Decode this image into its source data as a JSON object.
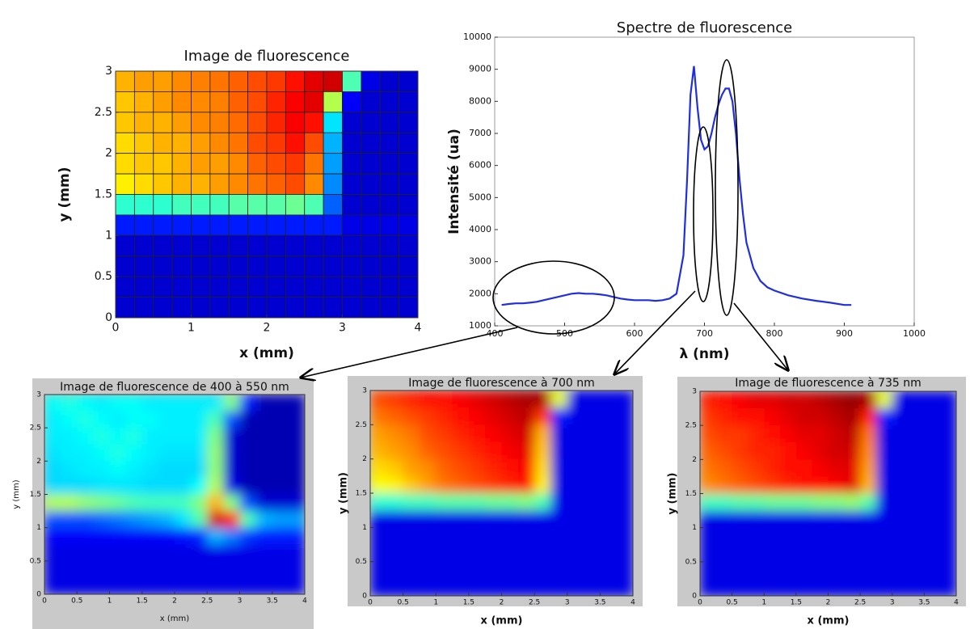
{
  "chart_data": [
    {
      "type": "heatmap",
      "title": "Image de fluorescence",
      "xlabel": "x (mm)",
      "ylabel": "y (mm)",
      "xlim": [
        0,
        4
      ],
      "ylim": [
        0,
        3
      ],
      "xticks": [
        0,
        1,
        2,
        3,
        4
      ],
      "yticks": [
        0,
        0.5,
        1,
        1.5,
        2,
        2.5,
        3
      ],
      "colormap": "jet",
      "clim": [
        0,
        1
      ],
      "cell_edges": true,
      "smooth": false,
      "z": [
        [
          0.7,
          0.72,
          0.72,
          0.74,
          0.75,
          0.76,
          0.78,
          0.8,
          0.82,
          0.86,
          0.9,
          0.92,
          0.45,
          0.1,
          0.08,
          0.08
        ],
        [
          0.68,
          0.7,
          0.72,
          0.74,
          0.74,
          0.75,
          0.78,
          0.8,
          0.84,
          0.88,
          0.9,
          0.55,
          0.12,
          0.08,
          0.08,
          0.08
        ],
        [
          0.68,
          0.7,
          0.7,
          0.72,
          0.74,
          0.75,
          0.77,
          0.8,
          0.84,
          0.88,
          0.86,
          0.35,
          0.08,
          0.08,
          0.08,
          0.08
        ],
        [
          0.66,
          0.68,
          0.7,
          0.7,
          0.72,
          0.74,
          0.76,
          0.8,
          0.82,
          0.86,
          0.8,
          0.3,
          0.08,
          0.08,
          0.08,
          0.08
        ],
        [
          0.66,
          0.68,
          0.68,
          0.7,
          0.72,
          0.72,
          0.74,
          0.78,
          0.8,
          0.82,
          0.76,
          0.28,
          0.08,
          0.08,
          0.08,
          0.08
        ],
        [
          0.64,
          0.66,
          0.68,
          0.7,
          0.7,
          0.72,
          0.74,
          0.76,
          0.78,
          0.8,
          0.74,
          0.26,
          0.08,
          0.08,
          0.08,
          0.08
        ],
        [
          0.42,
          0.42,
          0.42,
          0.44,
          0.44,
          0.44,
          0.46,
          0.46,
          0.46,
          0.48,
          0.45,
          0.22,
          0.08,
          0.08,
          0.08,
          0.08
        ],
        [
          0.15,
          0.15,
          0.15,
          0.15,
          0.15,
          0.15,
          0.15,
          0.15,
          0.15,
          0.15,
          0.15,
          0.15,
          0.1,
          0.1,
          0.1,
          0.1
        ],
        [
          0.08,
          0.08,
          0.08,
          0.08,
          0.08,
          0.08,
          0.08,
          0.08,
          0.08,
          0.08,
          0.08,
          0.08,
          0.08,
          0.08,
          0.08,
          0.08
        ],
        [
          0.08,
          0.08,
          0.08,
          0.08,
          0.08,
          0.08,
          0.08,
          0.08,
          0.08,
          0.08,
          0.08,
          0.08,
          0.08,
          0.08,
          0.08,
          0.08
        ],
        [
          0.08,
          0.08,
          0.08,
          0.08,
          0.08,
          0.08,
          0.08,
          0.08,
          0.08,
          0.08,
          0.08,
          0.08,
          0.08,
          0.08,
          0.08,
          0.08
        ],
        [
          0.08,
          0.08,
          0.08,
          0.08,
          0.08,
          0.08,
          0.08,
          0.08,
          0.08,
          0.08,
          0.08,
          0.08,
          0.08,
          0.08,
          0.08,
          0.08
        ]
      ]
    },
    {
      "type": "line",
      "title": "Spectre de fluorescence",
      "xlabel": "λ (nm)",
      "ylabel": "Intensité (ua)",
      "xlim": [
        400,
        1000
      ],
      "ylim": [
        1000,
        10000
      ],
      "xticks": [
        400,
        500,
        600,
        700,
        800,
        900,
        1000
      ],
      "yticks": [
        1000,
        2000,
        3000,
        4000,
        5000,
        6000,
        7000,
        8000,
        9000,
        10000
      ],
      "x": [
        410,
        420,
        430,
        440,
        450,
        460,
        470,
        480,
        490,
        500,
        510,
        520,
        530,
        540,
        550,
        560,
        570,
        580,
        590,
        600,
        610,
        620,
        630,
        640,
        650,
        660,
        670,
        675,
        680,
        685,
        690,
        695,
        700,
        705,
        710,
        715,
        720,
        725,
        730,
        735,
        740,
        745,
        750,
        755,
        760,
        770,
        780,
        790,
        800,
        820,
        840,
        860,
        880,
        900,
        910
      ],
      "series": [
        {
          "color": "#1f2fe0",
          "values": [
            1650,
            1680,
            1700,
            1700,
            1720,
            1750,
            1800,
            1850,
            1900,
            1950,
            2000,
            2020,
            2000,
            2000,
            1980,
            1950,
            1900,
            1850,
            1820,
            1800,
            1800,
            1800,
            1780,
            1800,
            1850,
            2000,
            3200,
            5500,
            8200,
            9100,
            7800,
            6800,
            6500,
            6600,
            7000,
            7500,
            7900,
            8200,
            8400,
            8400,
            8000,
            7000,
            5600,
            4500,
            3600,
            2800,
            2400,
            2200,
            2100,
            1950,
            1850,
            1780,
            1720,
            1650,
            1650
          ]
        }
      ]
    },
    {
      "type": "heatmap",
      "title": "Image de fluorescence de 400 à 550 nm",
      "xlabel": "x (mm)",
      "ylabel": "y (mm)",
      "xlim": [
        0,
        4
      ],
      "ylim": [
        0,
        3
      ],
      "xticks": [
        0,
        0.5,
        1,
        1.5,
        2,
        2.5,
        3,
        3.5,
        4
      ],
      "yticks": [
        0,
        0.5,
        1,
        1.5,
        2,
        2.5,
        3
      ],
      "colormap": "jet",
      "clim": [
        0,
        1
      ],
      "cell_edges": false,
      "smooth": true,
      "z": [
        [
          0.38,
          0.4,
          0.38,
          0.36,
          0.38,
          0.38,
          0.36,
          0.36,
          0.36,
          0.36,
          0.36,
          0.5,
          0.15,
          0.05,
          0.05,
          0.05
        ],
        [
          0.36,
          0.38,
          0.4,
          0.38,
          0.36,
          0.38,
          0.38,
          0.36,
          0.36,
          0.36,
          0.45,
          0.2,
          0.05,
          0.05,
          0.05,
          0.05
        ],
        [
          0.36,
          0.36,
          0.38,
          0.4,
          0.38,
          0.4,
          0.36,
          0.36,
          0.36,
          0.36,
          0.5,
          0.08,
          0.05,
          0.05,
          0.05,
          0.05
        ],
        [
          0.35,
          0.36,
          0.36,
          0.38,
          0.4,
          0.38,
          0.36,
          0.35,
          0.35,
          0.35,
          0.52,
          0.08,
          0.05,
          0.05,
          0.05,
          0.05
        ],
        [
          0.34,
          0.35,
          0.36,
          0.36,
          0.38,
          0.36,
          0.35,
          0.34,
          0.34,
          0.34,
          0.52,
          0.08,
          0.05,
          0.05,
          0.05,
          0.05
        ],
        [
          0.34,
          0.34,
          0.34,
          0.35,
          0.35,
          0.35,
          0.34,
          0.34,
          0.34,
          0.38,
          0.55,
          0.1,
          0.05,
          0.05,
          0.05,
          0.05
        ],
        [
          0.55,
          0.55,
          0.52,
          0.5,
          0.48,
          0.45,
          0.44,
          0.44,
          0.44,
          0.5,
          0.7,
          0.5,
          0.2,
          0.08,
          0.08,
          0.08
        ],
        [
          0.2,
          0.2,
          0.2,
          0.22,
          0.24,
          0.26,
          0.28,
          0.3,
          0.35,
          0.45,
          0.92,
          0.85,
          0.45,
          0.3,
          0.28,
          0.28
        ],
        [
          0.12,
          0.12,
          0.12,
          0.12,
          0.12,
          0.12,
          0.12,
          0.12,
          0.14,
          0.16,
          0.3,
          0.25,
          0.18,
          0.15,
          0.15,
          0.15
        ],
        [
          0.1,
          0.1,
          0.1,
          0.1,
          0.1,
          0.1,
          0.1,
          0.1,
          0.1,
          0.1,
          0.1,
          0.1,
          0.1,
          0.1,
          0.1,
          0.1
        ],
        [
          0.1,
          0.1,
          0.1,
          0.1,
          0.1,
          0.1,
          0.1,
          0.1,
          0.1,
          0.1,
          0.1,
          0.1,
          0.1,
          0.1,
          0.1,
          0.1
        ],
        [
          0.1,
          0.1,
          0.1,
          0.1,
          0.1,
          0.1,
          0.1,
          0.1,
          0.1,
          0.1,
          0.1,
          0.1,
          0.1,
          0.1,
          0.1,
          0.1
        ]
      ]
    },
    {
      "type": "heatmap",
      "title": "Image de fluorescence à 700 nm",
      "xlabel": "x (mm)",
      "ylabel": "y (mm)",
      "xlim": [
        0,
        4
      ],
      "ylim": [
        0,
        3
      ],
      "xticks": [
        0,
        0.5,
        1,
        1.5,
        2,
        2.5,
        3,
        3.5,
        4
      ],
      "yticks": [
        0,
        0.5,
        1,
        1.5,
        2,
        2.5,
        3
      ],
      "colormap": "jet",
      "clim": [
        0,
        1
      ],
      "cell_edges": false,
      "smooth": true,
      "z": [
        [
          0.8,
          0.82,
          0.84,
          0.86,
          0.86,
          0.88,
          0.9,
          0.92,
          0.94,
          0.96,
          0.96,
          0.6,
          0.1,
          0.1,
          0.1,
          0.1
        ],
        [
          0.76,
          0.78,
          0.8,
          0.82,
          0.84,
          0.86,
          0.88,
          0.9,
          0.92,
          0.94,
          0.82,
          0.15,
          0.1,
          0.1,
          0.1,
          0.1
        ],
        [
          0.72,
          0.74,
          0.76,
          0.8,
          0.82,
          0.84,
          0.86,
          0.88,
          0.9,
          0.92,
          0.7,
          0.1,
          0.1,
          0.1,
          0.1,
          0.1
        ],
        [
          0.7,
          0.72,
          0.74,
          0.78,
          0.8,
          0.82,
          0.84,
          0.86,
          0.88,
          0.9,
          0.68,
          0.1,
          0.1,
          0.1,
          0.1,
          0.1
        ],
        [
          0.66,
          0.68,
          0.72,
          0.74,
          0.78,
          0.8,
          0.82,
          0.84,
          0.86,
          0.88,
          0.66,
          0.1,
          0.1,
          0.1,
          0.1,
          0.1
        ],
        [
          0.62,
          0.64,
          0.68,
          0.72,
          0.76,
          0.78,
          0.8,
          0.82,
          0.84,
          0.86,
          0.64,
          0.1,
          0.1,
          0.1,
          0.1,
          0.1
        ],
        [
          0.42,
          0.42,
          0.44,
          0.44,
          0.46,
          0.46,
          0.46,
          0.48,
          0.48,
          0.5,
          0.45,
          0.1,
          0.1,
          0.1,
          0.1,
          0.1
        ],
        [
          0.1,
          0.1,
          0.1,
          0.1,
          0.1,
          0.1,
          0.1,
          0.1,
          0.1,
          0.1,
          0.1,
          0.1,
          0.1,
          0.1,
          0.1,
          0.1
        ],
        [
          0.1,
          0.1,
          0.1,
          0.1,
          0.1,
          0.1,
          0.1,
          0.1,
          0.1,
          0.1,
          0.1,
          0.1,
          0.1,
          0.1,
          0.1,
          0.1
        ],
        [
          0.1,
          0.1,
          0.1,
          0.1,
          0.1,
          0.1,
          0.1,
          0.1,
          0.1,
          0.1,
          0.1,
          0.1,
          0.1,
          0.1,
          0.1,
          0.1
        ],
        [
          0.1,
          0.1,
          0.1,
          0.1,
          0.1,
          0.1,
          0.1,
          0.1,
          0.1,
          0.1,
          0.1,
          0.1,
          0.1,
          0.1,
          0.1,
          0.1
        ],
        [
          0.1,
          0.1,
          0.1,
          0.1,
          0.1,
          0.1,
          0.1,
          0.1,
          0.1,
          0.1,
          0.1,
          0.1,
          0.1,
          0.1,
          0.1,
          0.1
        ]
      ]
    },
    {
      "type": "heatmap",
      "title": "Image de fluorescence à 735 nm",
      "xlabel": "x (mm)",
      "ylabel": "y (mm)",
      "xlim": [
        0,
        4
      ],
      "ylim": [
        0,
        3
      ],
      "xticks": [
        0,
        0.5,
        1,
        1.5,
        2,
        2.5,
        3,
        3.5,
        4
      ],
      "yticks": [
        0,
        0.5,
        1,
        1.5,
        2,
        2.5,
        3
      ],
      "colormap": "jet",
      "clim": [
        0,
        1
      ],
      "cell_edges": false,
      "smooth": true,
      "z": [
        [
          0.85,
          0.86,
          0.88,
          0.9,
          0.9,
          0.92,
          0.92,
          0.94,
          0.96,
          0.98,
          0.96,
          0.6,
          0.1,
          0.1,
          0.1,
          0.1
        ],
        [
          0.82,
          0.84,
          0.86,
          0.86,
          0.88,
          0.9,
          0.92,
          0.92,
          0.94,
          0.96,
          0.84,
          0.15,
          0.1,
          0.1,
          0.1,
          0.1
        ],
        [
          0.8,
          0.82,
          0.82,
          0.84,
          0.86,
          0.88,
          0.9,
          0.9,
          0.92,
          0.94,
          0.76,
          0.1,
          0.1,
          0.1,
          0.1,
          0.1
        ],
        [
          0.78,
          0.8,
          0.82,
          0.84,
          0.84,
          0.86,
          0.88,
          0.9,
          0.92,
          0.92,
          0.74,
          0.1,
          0.1,
          0.1,
          0.1,
          0.1
        ],
        [
          0.76,
          0.78,
          0.8,
          0.82,
          0.84,
          0.86,
          0.86,
          0.88,
          0.9,
          0.9,
          0.72,
          0.1,
          0.1,
          0.1,
          0.1,
          0.1
        ],
        [
          0.74,
          0.76,
          0.78,
          0.8,
          0.82,
          0.84,
          0.86,
          0.86,
          0.88,
          0.9,
          0.7,
          0.1,
          0.1,
          0.1,
          0.1,
          0.1
        ],
        [
          0.44,
          0.44,
          0.46,
          0.46,
          0.48,
          0.48,
          0.48,
          0.5,
          0.5,
          0.52,
          0.46,
          0.1,
          0.1,
          0.1,
          0.1,
          0.1
        ],
        [
          0.1,
          0.1,
          0.1,
          0.1,
          0.1,
          0.1,
          0.1,
          0.1,
          0.1,
          0.1,
          0.1,
          0.1,
          0.1,
          0.1,
          0.1,
          0.1
        ],
        [
          0.1,
          0.1,
          0.1,
          0.1,
          0.1,
          0.1,
          0.1,
          0.1,
          0.1,
          0.1,
          0.1,
          0.1,
          0.1,
          0.1,
          0.1,
          0.1
        ],
        [
          0.1,
          0.1,
          0.1,
          0.1,
          0.1,
          0.1,
          0.1,
          0.1,
          0.1,
          0.1,
          0.1,
          0.1,
          0.1,
          0.1,
          0.1,
          0.1
        ],
        [
          0.1,
          0.1,
          0.1,
          0.1,
          0.1,
          0.1,
          0.1,
          0.1,
          0.1,
          0.1,
          0.1,
          0.1,
          0.1,
          0.1,
          0.1,
          0.1
        ],
        [
          0.1,
          0.1,
          0.1,
          0.1,
          0.1,
          0.1,
          0.1,
          0.1,
          0.1,
          0.1,
          0.1,
          0.1,
          0.1,
          0.1,
          0.1,
          0.1
        ]
      ]
    }
  ]
}
